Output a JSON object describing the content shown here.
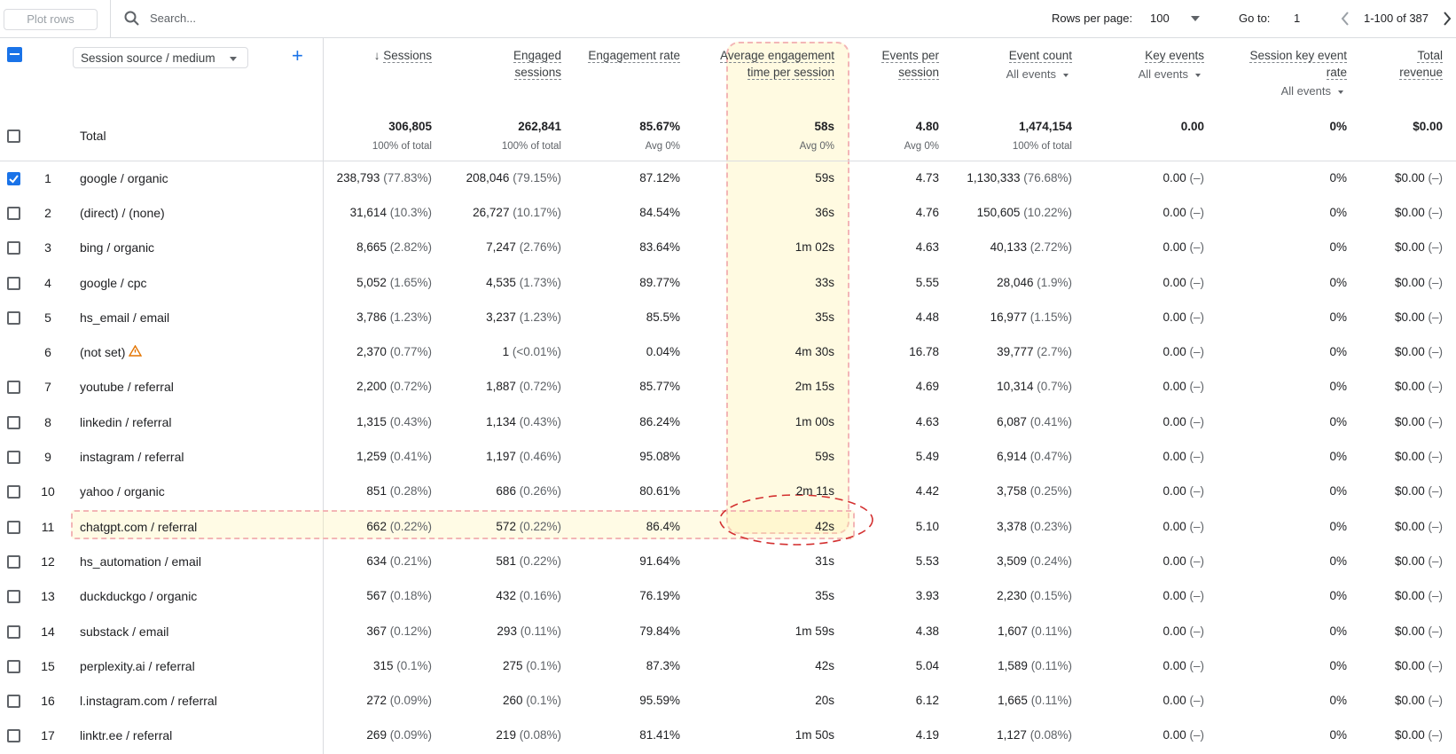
{
  "toolbar": {
    "plot_rows": "Plot rows",
    "search": "Search...",
    "rows_per_page_label": "Rows per page:",
    "rows_per_page": "100",
    "goto_label": "Go to:",
    "goto": "1",
    "range": "1-100 of 387"
  },
  "table": {
    "dimension": "Session source / medium",
    "headers": [
      {
        "title": "Sessions"
      },
      {
        "title": "Engaged sessions"
      },
      {
        "title": "Engagement rate"
      },
      {
        "title": "Average engagement time per session"
      },
      {
        "title": "Events per session"
      },
      {
        "title": "Event count",
        "sub": "All events"
      },
      {
        "title": "Key events",
        "sub": "All events"
      },
      {
        "title": "Session key event rate",
        "sub": "All events"
      },
      {
        "title": "Total revenue"
      }
    ],
    "total": {
      "label": "Total",
      "values": [
        "306,805",
        "262,841",
        "85.67%",
        "58s",
        "4.80",
        "1,474,154",
        "0.00",
        "0%",
        "$0.00"
      ],
      "subs": [
        "100% of total",
        "100% of total",
        "Avg 0%",
        "Avg 0%",
        "Avg 0%",
        "100% of total",
        "",
        "",
        ""
      ]
    },
    "rows": [
      [
        "1",
        "google / organic",
        "238,793",
        "(77.83%)",
        "208,046",
        "(79.15%)",
        "87.12%",
        "59s",
        "4.73",
        "1,130,333",
        "(76.68%)",
        "0.00",
        "(–)",
        "0%",
        "$0.00",
        "(–)"
      ],
      [
        "2",
        "(direct) / (none)",
        "31,614",
        "(10.3%)",
        "26,727",
        "(10.17%)",
        "84.54%",
        "36s",
        "4.76",
        "150,605",
        "(10.22%)",
        "0.00",
        "(–)",
        "0%",
        "$0.00",
        "(–)"
      ],
      [
        "3",
        "bing / organic",
        "8,665",
        "(2.82%)",
        "7,247",
        "(2.76%)",
        "83.64%",
        "1m 02s",
        "4.63",
        "40,133",
        "(2.72%)",
        "0.00",
        "(–)",
        "0%",
        "$0.00",
        "(–)"
      ],
      [
        "4",
        "google / cpc",
        "5,052",
        "(1.65%)",
        "4,535",
        "(1.73%)",
        "89.77%",
        "33s",
        "5.55",
        "28,046",
        "(1.9%)",
        "0.00",
        "(–)",
        "0%",
        "$0.00",
        "(–)"
      ],
      [
        "5",
        "hs_email / email",
        "3,786",
        "(1.23%)",
        "3,237",
        "(1.23%)",
        "85.5%",
        "35s",
        "4.48",
        "16,977",
        "(1.15%)",
        "0.00",
        "(–)",
        "0%",
        "$0.00",
        "(–)"
      ],
      [
        "6",
        "(not set)",
        "2,370",
        "(0.77%)",
        "1",
        "(<0.01%)",
        "0.04%",
        "4m 30s",
        "16.78",
        "39,777",
        "(2.7%)",
        "0.00",
        "(–)",
        "0%",
        "$0.00",
        "(–)"
      ],
      [
        "7",
        "youtube / referral",
        "2,200",
        "(0.72%)",
        "1,887",
        "(0.72%)",
        "85.77%",
        "2m 15s",
        "4.69",
        "10,314",
        "(0.7%)",
        "0.00",
        "(–)",
        "0%",
        "$0.00",
        "(–)"
      ],
      [
        "8",
        "linkedin / referral",
        "1,315",
        "(0.43%)",
        "1,134",
        "(0.43%)",
        "86.24%",
        "1m 00s",
        "4.63",
        "6,087",
        "(0.41%)",
        "0.00",
        "(–)",
        "0%",
        "$0.00",
        "(–)"
      ],
      [
        "9",
        "instagram / referral",
        "1,259",
        "(0.41%)",
        "1,197",
        "(0.46%)",
        "95.08%",
        "59s",
        "5.49",
        "6,914",
        "(0.47%)",
        "0.00",
        "(–)",
        "0%",
        "$0.00",
        "(–)"
      ],
      [
        "10",
        "yahoo / organic",
        "851",
        "(0.28%)",
        "686",
        "(0.26%)",
        "80.61%",
        "2m 11s",
        "4.42",
        "3,758",
        "(0.25%)",
        "0.00",
        "(–)",
        "0%",
        "$0.00",
        "(–)"
      ],
      [
        "11",
        "chatgpt.com / referral",
        "662",
        "(0.22%)",
        "572",
        "(0.22%)",
        "86.4%",
        "42s",
        "5.10",
        "3,378",
        "(0.23%)",
        "0.00",
        "(–)",
        "0%",
        "$0.00",
        "(–)"
      ],
      [
        "12",
        "hs_automation / email",
        "634",
        "(0.21%)",
        "581",
        "(0.22%)",
        "91.64%",
        "31s",
        "5.53",
        "3,509",
        "(0.24%)",
        "0.00",
        "(–)",
        "0%",
        "$0.00",
        "(–)"
      ],
      [
        "13",
        "duckduckgo / organic",
        "567",
        "(0.18%)",
        "432",
        "(0.16%)",
        "76.19%",
        "35s",
        "3.93",
        "2,230",
        "(0.15%)",
        "0.00",
        "(–)",
        "0%",
        "$0.00",
        "(–)"
      ],
      [
        "14",
        "substack / email",
        "367",
        "(0.12%)",
        "293",
        "(0.11%)",
        "79.84%",
        "1m 59s",
        "4.38",
        "1,607",
        "(0.11%)",
        "0.00",
        "(–)",
        "0%",
        "$0.00",
        "(–)"
      ],
      [
        "15",
        "perplexity.ai / referral",
        "315",
        "(0.1%)",
        "275",
        "(0.1%)",
        "87.3%",
        "42s",
        "5.04",
        "1,589",
        "(0.11%)",
        "0.00",
        "(–)",
        "0%",
        "$0.00",
        "(–)"
      ],
      [
        "16",
        "l.instagram.com / referral",
        "272",
        "(0.09%)",
        "260",
        "(0.1%)",
        "95.59%",
        "20s",
        "6.12",
        "1,665",
        "(0.11%)",
        "0.00",
        "(–)",
        "0%",
        "$0.00",
        "(–)"
      ],
      [
        "17",
        "linktr.ee / referral",
        "269",
        "(0.09%)",
        "219",
        "(0.08%)",
        "81.41%",
        "1m 50s",
        "4.19",
        "1,127",
        "(0.08%)",
        "0.00",
        "(–)",
        "0%",
        "$0.00",
        "(–)"
      ]
    ]
  }
}
